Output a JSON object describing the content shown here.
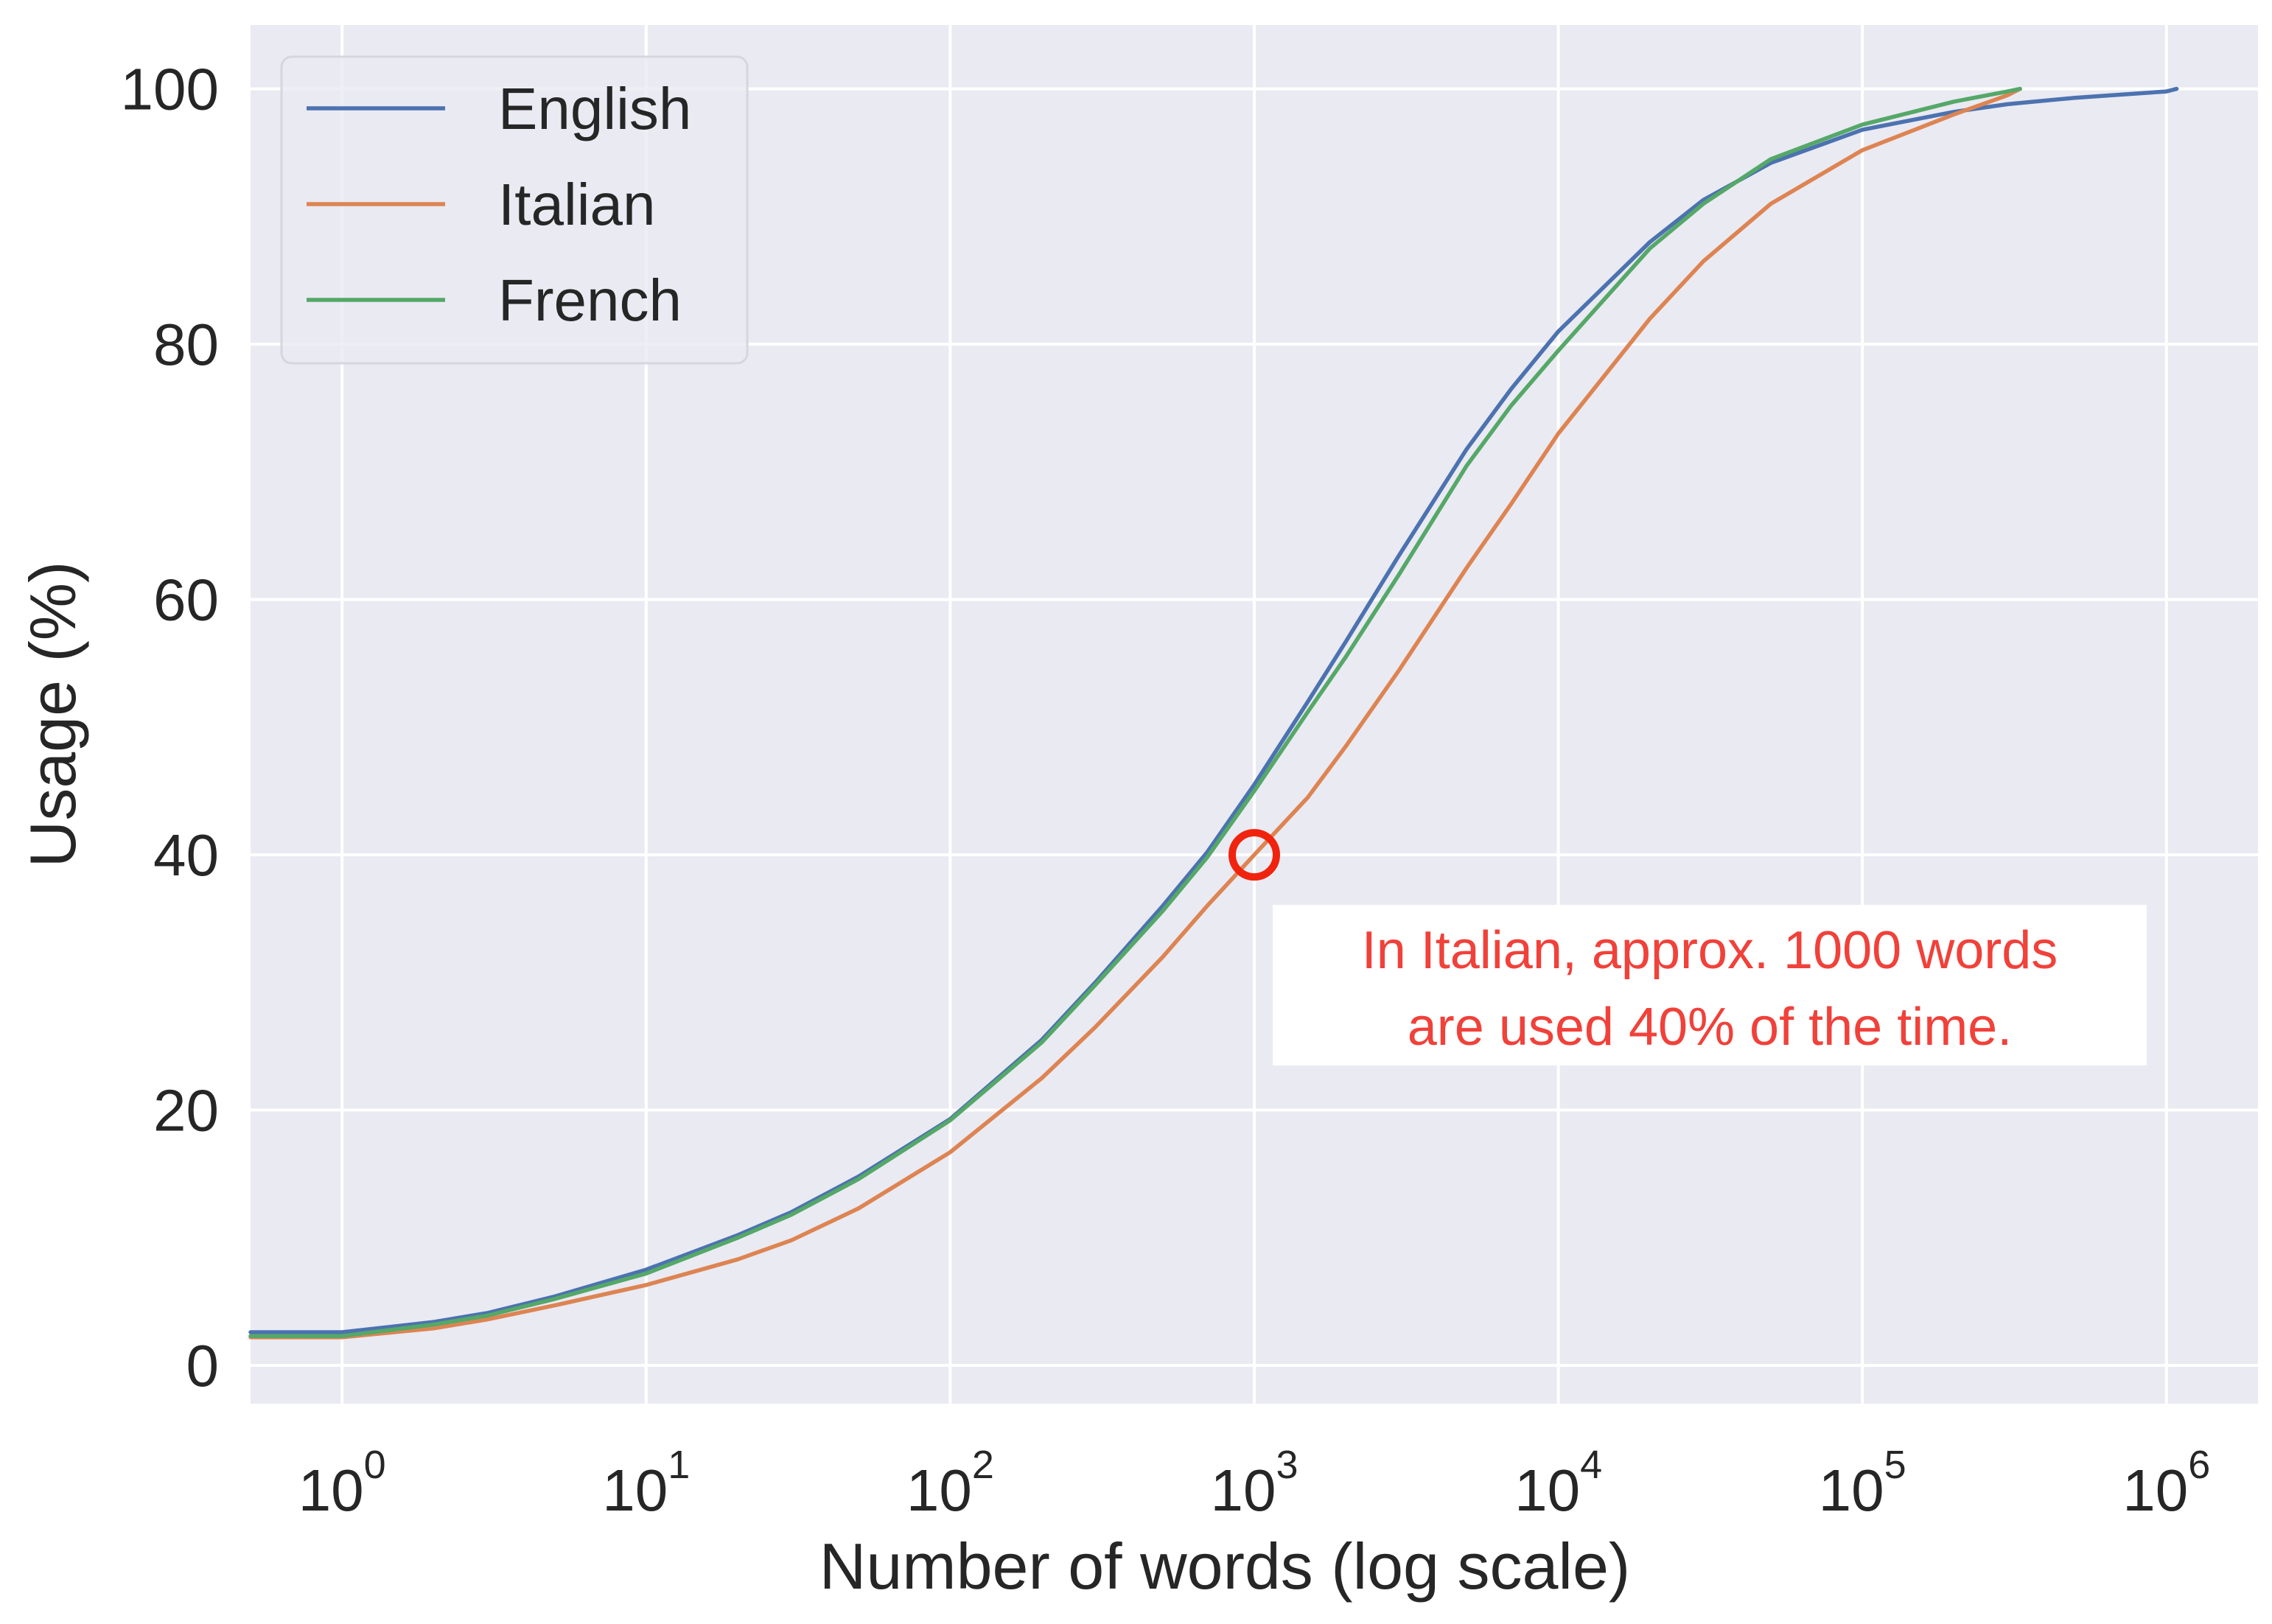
{
  "chart_data": {
    "type": "line",
    "xlabel": "Number of words (log scale)",
    "ylabel": "Usage (%)",
    "x_scale": "log",
    "xlim": [
      0.5,
      2000000
    ],
    "ylim": [
      -3,
      105
    ],
    "x_ticks": [
      {
        "value": 1,
        "base": "10",
        "exp": "0"
      },
      {
        "value": 10,
        "base": "10",
        "exp": "1"
      },
      {
        "value": 100,
        "base": "10",
        "exp": "2"
      },
      {
        "value": 1000,
        "base": "10",
        "exp": "3"
      },
      {
        "value": 10000,
        "base": "10",
        "exp": "4"
      },
      {
        "value": 100000,
        "base": "10",
        "exp": "5"
      },
      {
        "value": 1000000,
        "base": "10",
        "exp": "6"
      }
    ],
    "y_ticks": [
      0,
      20,
      40,
      60,
      80,
      100
    ],
    "grid": true,
    "background": "#eaeaf2",
    "legend_position": "top-left",
    "series": [
      {
        "name": "English",
        "color": "#4c72b0",
        "x": [
          0.5,
          1,
          2,
          3,
          5,
          10,
          20,
          30,
          50,
          100,
          200,
          300,
          500,
          700,
          1000,
          1500,
          2000,
          3000,
          5000,
          7000,
          10000,
          20000,
          30000,
          50000,
          100000,
          200000,
          300000,
          500000,
          1000000,
          1080000
        ],
        "y": [
          2.6,
          2.6,
          3.4,
          4.1,
          5.4,
          7.5,
          10.2,
          12.0,
          14.8,
          19.3,
          25.5,
          30.0,
          36.0,
          40.2,
          45.5,
          52.0,
          56.7,
          63.5,
          71.8,
          76.5,
          81.0,
          88.0,
          91.3,
          94.2,
          96.8,
          98.2,
          98.8,
          99.3,
          99.8,
          100.0
        ]
      },
      {
        "name": "Italian",
        "color": "#dd8452",
        "x": [
          0.5,
          1,
          2,
          3,
          5,
          10,
          20,
          30,
          50,
          100,
          200,
          300,
          500,
          700,
          1000,
          1500,
          2000,
          3000,
          5000,
          7000,
          10000,
          20000,
          30000,
          50000,
          100000,
          200000,
          300000,
          330000
        ],
        "y": [
          2.2,
          2.2,
          2.9,
          3.6,
          4.7,
          6.3,
          8.3,
          9.8,
          12.3,
          16.7,
          22.5,
          26.5,
          32.0,
          36.0,
          40.0,
          44.5,
          48.5,
          54.5,
          62.5,
          67.5,
          73.0,
          82.0,
          86.5,
          91.0,
          95.2,
          98.0,
          99.5,
          100.0
        ]
      },
      {
        "name": "French",
        "color": "#55a868",
        "x": [
          0.5,
          1,
          2,
          3,
          5,
          10,
          20,
          30,
          50,
          100,
          200,
          300,
          500,
          700,
          1000,
          1500,
          2000,
          3000,
          5000,
          7000,
          10000,
          20000,
          30000,
          50000,
          100000,
          200000,
          300000,
          330000
        ],
        "y": [
          2.3,
          2.3,
          3.2,
          3.9,
          5.2,
          7.2,
          10.0,
          11.8,
          14.6,
          19.2,
          25.3,
          29.8,
          35.6,
          39.8,
          45.0,
          51.2,
          55.5,
          62.0,
          70.5,
          75.2,
          79.5,
          87.5,
          91.0,
          94.5,
          97.2,
          99.0,
          99.8,
          100.0
        ]
      }
    ],
    "annotation": {
      "point": {
        "x": 1000,
        "y": 40
      },
      "marker_color": "#f0240e",
      "text_color": "#f0413a",
      "lines": [
        "In Italian, approx. 1000 words",
        "are used 40% of the time."
      ]
    }
  }
}
